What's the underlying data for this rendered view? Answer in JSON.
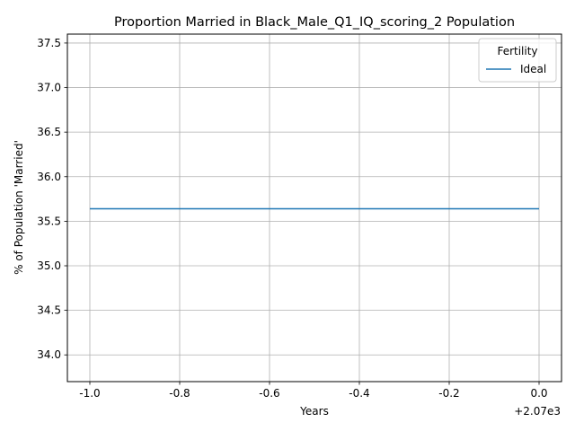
{
  "chart_data": {
    "type": "line",
    "title": "Proportion Married in Black_Male_Q1_IQ_scoring_2 Population",
    "xlabel": "Years",
    "ylabel": "% of Population 'Married'",
    "x_offset_label": "+2.07e3",
    "x_tick_labels": [
      "-1.0",
      "-0.8",
      "-0.6",
      "-0.4",
      "-0.2",
      "0.0"
    ],
    "y_tick_labels": [
      "34.0",
      "34.5",
      "35.0",
      "35.5",
      "36.0",
      "36.5",
      "37.0",
      "37.5"
    ],
    "xlim": [
      2068.95,
      2070.05
    ],
    "ylim": [
      33.7,
      37.6
    ],
    "x_ticks": [
      2069.0,
      2069.2,
      2069.4,
      2069.6,
      2069.8,
      2070.0
    ],
    "y_ticks": [
      34.0,
      34.5,
      35.0,
      35.5,
      36.0,
      36.5,
      37.0,
      37.5
    ],
    "grid": true,
    "legend": {
      "title": "Fertility",
      "position": "top-right"
    },
    "series": [
      {
        "name": "Ideal",
        "color": "#1f77b4",
        "x": [
          2069,
          2070
        ],
        "y": [
          35.64,
          35.64
        ]
      }
    ]
  }
}
